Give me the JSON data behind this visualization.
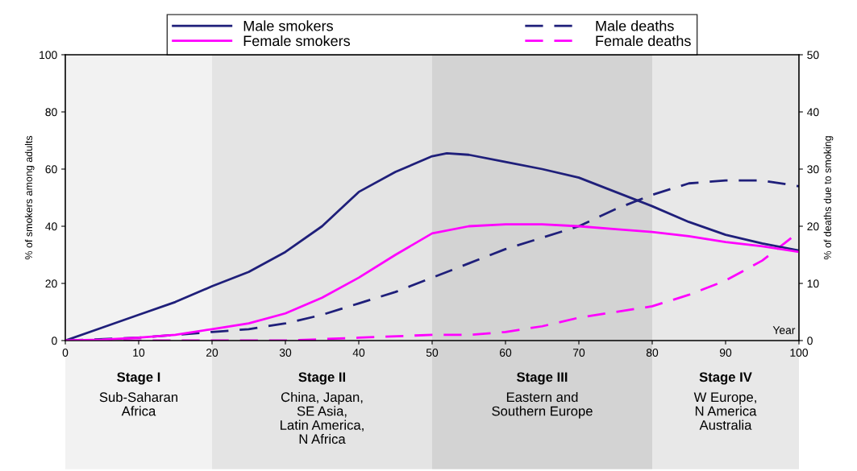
{
  "chart_data": {
    "type": "line",
    "xlabel": "Year",
    "ylabel": "% of smokers among adults",
    "y2label": "% of deaths due to smoking",
    "xlim": [
      0,
      100
    ],
    "xticks": [
      0,
      10,
      20,
      30,
      40,
      50,
      60,
      70,
      80,
      90,
      100
    ],
    "ylim": [
      0,
      100
    ],
    "yticks": [
      0,
      20,
      40,
      60,
      80,
      100
    ],
    "y2lim": [
      0,
      50
    ],
    "y2ticks": [
      0,
      10,
      20,
      30,
      40,
      50
    ],
    "grid": false,
    "legend": "top",
    "marker": "none",
    "series": [
      {
        "name": "Male smokers",
        "color": "#1f1f7a",
        "line_style": "solid",
        "x": [
          0,
          5,
          10,
          15,
          20,
          25,
          30,
          35,
          40,
          45,
          50,
          52,
          55,
          60,
          65,
          70,
          75,
          80,
          85,
          90,
          95,
          100
        ],
        "values": [
          0,
          4.5,
          9,
          13.5,
          19,
          24,
          31,
          40,
          52,
          59,
          64.5,
          65.5,
          65,
          62.5,
          60,
          57,
          52,
          47,
          41.5,
          37,
          34,
          31.5
        ]
      },
      {
        "name": "Female smokers",
        "color": "#ff00ff",
        "line_style": "solid",
        "x": [
          0,
          5,
          10,
          15,
          20,
          25,
          30,
          35,
          40,
          45,
          50,
          55,
          60,
          65,
          70,
          75,
          80,
          85,
          90,
          95,
          100
        ],
        "values": [
          0,
          0.3,
          1,
          2,
          4,
          6,
          9.5,
          15,
          22,
          30,
          37.5,
          40,
          40.7,
          40.7,
          40,
          39,
          38,
          36.5,
          34.5,
          33,
          31
        ]
      },
      {
        "name": "Male deaths",
        "color": "#1f1f7a",
        "line_style": "dashed",
        "axis": "y2",
        "x": [
          0,
          10,
          20,
          25,
          30,
          35,
          40,
          45,
          50,
          55,
          60,
          65,
          70,
          75,
          80,
          85,
          90,
          95,
          100
        ],
        "values": [
          0,
          0.5,
          1.5,
          2,
          3,
          4.5,
          6.5,
          8.5,
          11,
          13.5,
          16,
          18,
          20,
          23,
          25.5,
          27.5,
          28,
          28,
          27
        ]
      },
      {
        "name": "Female deaths",
        "color": "#ff00ff",
        "line_style": "dashed",
        "axis": "y2",
        "x": [
          0,
          20,
          30,
          40,
          50,
          55,
          60,
          65,
          70,
          75,
          80,
          85,
          90,
          95,
          100
        ],
        "values": [
          0,
          0,
          0,
          0.5,
          1,
          1,
          1.5,
          2.5,
          4,
          5,
          6,
          8,
          10.5,
          14,
          19
        ]
      }
    ],
    "bands": [
      {
        "axis": "x",
        "from": 0,
        "to": 20,
        "label": "Stage I\nSub-Saharan\nAfrica",
        "color": "#f2f2f2"
      },
      {
        "axis": "x",
        "from": 20,
        "to": 50,
        "label": "Stage II\nChina, Japan,\nSE Asia,\nLatin America,\nN Africa",
        "color": "#e4e4e4"
      },
      {
        "axis": "x",
        "from": 50,
        "to": 80,
        "label": "Stage III\nEastern and\nSouthern Europe",
        "color": "#d3d3d3"
      },
      {
        "axis": "x",
        "from": 80,
        "to": 100,
        "label": "Stage IV\nW Europe,\nN America\nAustralia",
        "color": "#e8e8e8"
      }
    ]
  }
}
